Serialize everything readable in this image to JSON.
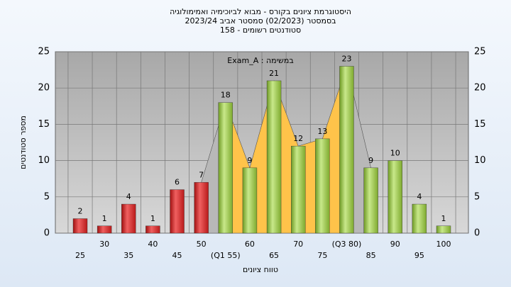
{
  "chart_data": {
    "type": "bar",
    "title": "היסטוגרמת ציונים בקורס - מבוא לביוכימיה ואמימולוגיה",
    "subtitle": "בסמסטר  (02/2023)  סמסטר אביב 2023/24",
    "subtitle2": "סטודנטים רשומים - 158",
    "legend": "Exam_A : במשימה",
    "xlabel": "טווח ציונים",
    "ylabel": "מספר סטודנטים",
    "categories": [
      "25",
      "30",
      "35",
      "40",
      "45",
      "50",
      "(Q1 55)",
      "60",
      "65",
      "70",
      "75",
      "(Q3 80)",
      "85",
      "90",
      "95",
      "100"
    ],
    "values": [
      2,
      1,
      4,
      1,
      6,
      7,
      18,
      9,
      21,
      12,
      13,
      23,
      9,
      10,
      4,
      1
    ],
    "colors": [
      "#d42a2a",
      "#d42a2a",
      "#d42a2a",
      "#d42a2a",
      "#d42a2a",
      "#d42a2a",
      "#8fbf3a",
      "#8fbf3a",
      "#8fbf3a",
      "#8fbf3a",
      "#8fbf3a",
      "#8fbf3a",
      "#8fbf3a",
      "#8fbf3a",
      "#8fbf3a",
      "#8fbf3a"
    ],
    "ylim": [
      0,
      25
    ],
    "yticks": [
      0,
      5,
      10,
      15,
      20,
      25
    ],
    "grid": true
  }
}
